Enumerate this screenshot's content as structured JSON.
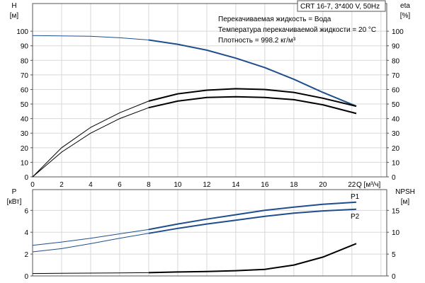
{
  "chart_data": [
    {
      "type": "line",
      "title": "CRT 16-7, 3*400 V, 50Hz",
      "annotations": [
        "Перекачиваемая жидкость = Вода",
        "Температура перекачиваемой жидкости = 20 °C",
        "Плотность = 998.2 кг/м³"
      ],
      "xlabel": "Q [м³/ч]",
      "xlim": [
        0,
        24.4
      ],
      "xticks": [
        0,
        2,
        4,
        6,
        8,
        10,
        12,
        14,
        16,
        18,
        20,
        22
      ],
      "ylabel_left": [
        "H",
        "[м]"
      ],
      "ylabel_right": [
        "eta",
        "[%]"
      ],
      "ylim": [
        0,
        119
      ],
      "yticks": [
        0,
        10,
        20,
        30,
        40,
        50,
        60,
        70,
        80,
        90,
        100
      ],
      "grid": true,
      "series": [
        {
          "x": [
            0,
            2,
            4,
            6,
            8,
            10,
            12,
            14,
            16,
            18,
            20,
            22.3
          ],
          "values": [
            97,
            96.8,
            96.5,
            95.5,
            94,
            91,
            87,
            81.5,
            75,
            67,
            58,
            48.5
          ],
          "color": "#1f4e8c"
        },
        {
          "x": [
            0,
            2,
            4,
            6,
            8,
            10,
            12,
            14,
            16,
            18,
            20,
            22.3
          ],
          "values": [
            0,
            20,
            34,
            44,
            52,
            57,
            59.5,
            60.5,
            60,
            58,
            54,
            48.5
          ],
          "color": "#000000"
        },
        {
          "x": [
            0,
            2,
            4,
            6,
            8,
            10,
            12,
            14,
            16,
            18,
            20,
            22.3
          ],
          "values": [
            0,
            17,
            30,
            40,
            47.5,
            52,
            54.5,
            55,
            54.5,
            53,
            49.5,
            43.5
          ],
          "color": "#000000"
        }
      ]
    },
    {
      "type": "line",
      "xlim": [
        0,
        24.4
      ],
      "xticks": [
        0,
        2,
        4,
        6,
        8,
        10,
        12,
        14,
        16,
        18,
        20,
        22
      ],
      "ylabel_left": [
        "P",
        "[кВт]"
      ],
      "ylabel_right": [
        "NPSH",
        "[м]"
      ],
      "ylim": [
        0,
        7.9
      ],
      "yticks": [
        0,
        2,
        4,
        6
      ],
      "yticks_right": [
        0,
        5,
        10,
        15
      ],
      "grid": true,
      "series": [
        {
          "name": "P1",
          "x": [
            0,
            2,
            4,
            6,
            8,
            10,
            12,
            14,
            16,
            18,
            20,
            22.3
          ],
          "values": [
            2.8,
            3.1,
            3.45,
            3.85,
            4.25,
            4.75,
            5.2,
            5.6,
            6.0,
            6.3,
            6.55,
            6.75
          ],
          "color": "#1f4e8c"
        },
        {
          "name": "P2",
          "x": [
            0,
            2,
            4,
            6,
            8,
            10,
            12,
            14,
            16,
            18,
            20,
            22.3
          ],
          "values": [
            2.2,
            2.5,
            2.95,
            3.45,
            3.9,
            4.35,
            4.75,
            5.1,
            5.45,
            5.75,
            5.95,
            6.1
          ],
          "color": "#1f4e8c"
        },
        {
          "axis": "right",
          "x": [
            0,
            2,
            4,
            6,
            8,
            10,
            12,
            14,
            16,
            18,
            20,
            22.3
          ],
          "values": [
            0.55,
            0.6,
            0.65,
            0.7,
            0.75,
            0.9,
            1.0,
            1.2,
            1.5,
            2.5,
            4.3,
            7.4
          ],
          "color": "#000000"
        }
      ]
    }
  ]
}
